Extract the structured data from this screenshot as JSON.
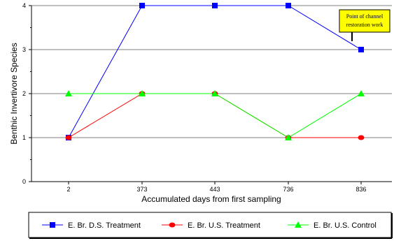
{
  "chart_data": {
    "type": "line",
    "title": "",
    "xlabel": "Accumulated days from first sampling",
    "ylabel": "Benthic Invertivore Species",
    "categories": [
      "2",
      "373",
      "443",
      "736",
      "836"
    ],
    "ylim": [
      0,
      4
    ],
    "yticks": [
      "0",
      "1",
      "2",
      "3",
      "4"
    ],
    "grid": true,
    "legend_position": "bottom",
    "series": [
      {
        "name": "E. Br. D.S. Treatment",
        "color": "#0000ff",
        "marker": "square",
        "values": [
          1,
          4,
          4,
          4,
          3
        ]
      },
      {
        "name": "E. Br. U.S. Treatment",
        "color": "#ff0000",
        "marker": "circle",
        "values": [
          1,
          2,
          2,
          1,
          1
        ]
      },
      {
        "name": "E. Br. U.S. Control",
        "color": "#00ff00",
        "marker": "triangle",
        "values": [
          2,
          2,
          2,
          1,
          2
        ]
      }
    ],
    "annotation": {
      "lines": [
        "Point of channel",
        "restoration work"
      ],
      "category": "836",
      "value": 3,
      "background": "#ffff00"
    }
  }
}
